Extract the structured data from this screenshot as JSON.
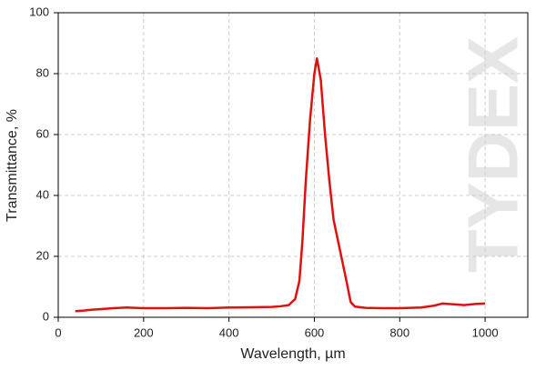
{
  "chart_data": {
    "type": "line",
    "watermark": "TYDEX",
    "x_label": "Wavelength, µm",
    "y_label": "Transmittance, %",
    "x": [
      40,
      60,
      80,
      100,
      130,
      160,
      200,
      250,
      300,
      350,
      400,
      450,
      500,
      520,
      540,
      555,
      565,
      572,
      580,
      590,
      600,
      606,
      615,
      625,
      635,
      645,
      660,
      675,
      685,
      695,
      720,
      760,
      800,
      850,
      880,
      900,
      930,
      950,
      980,
      1000
    ],
    "series": [
      {
        "name": "Transmittance",
        "color": "#e01010",
        "values": [
          2,
          2.2,
          2.5,
          2.7,
          3,
          3.2,
          3,
          3,
          3.1,
          3,
          3.2,
          3.3,
          3.4,
          3.6,
          4,
          6,
          12,
          25,
          45,
          65,
          80,
          85,
          78,
          60,
          45,
          32,
          22,
          12,
          5,
          3.5,
          3.1,
          3,
          3,
          3.2,
          3.8,
          4.5,
          4.2,
          4,
          4.4,
          4.5
        ]
      }
    ],
    "xlim": [
      0,
      1100
    ],
    "xticks": [
      0,
      200,
      400,
      600,
      800,
      1000
    ],
    "ylim": [
      0,
      100
    ],
    "yticks": [
      0,
      20,
      40,
      60,
      80,
      100
    ],
    "grid": true
  }
}
